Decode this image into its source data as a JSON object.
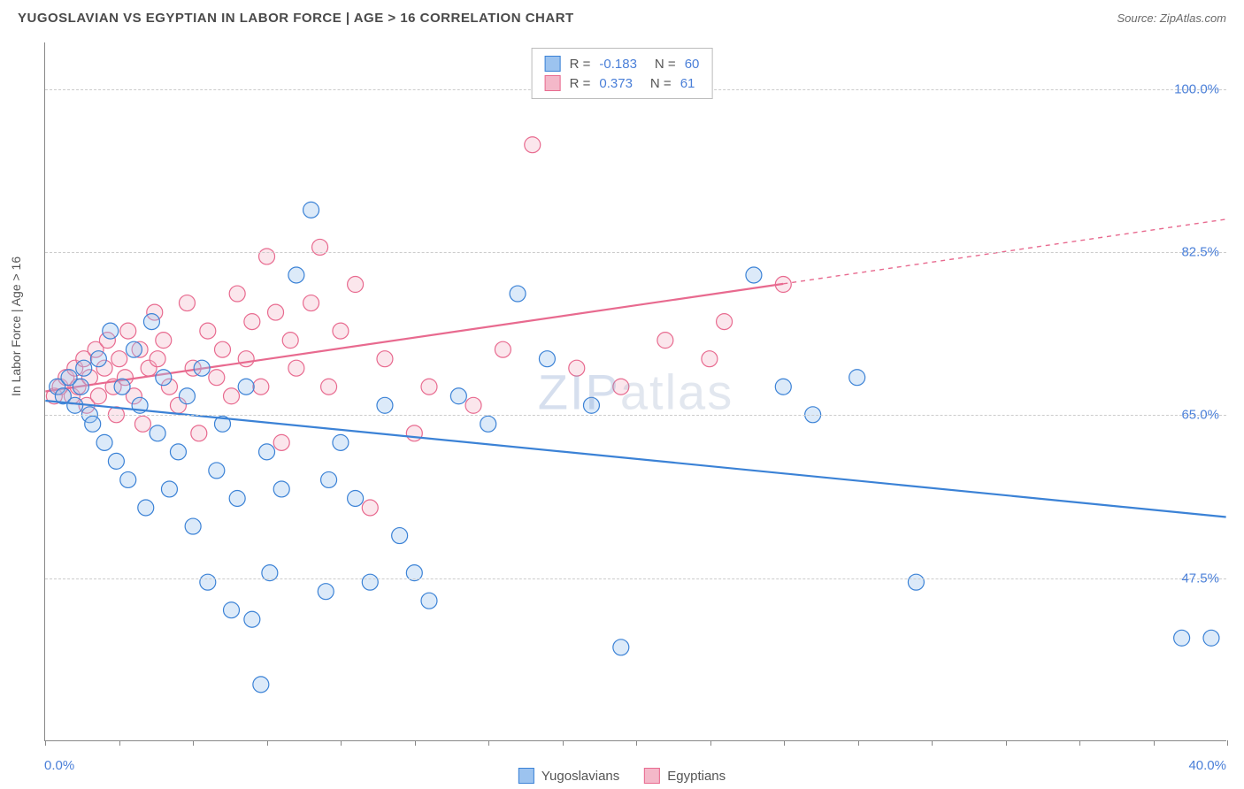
{
  "header": {
    "title": "YUGOSLAVIAN VS EGYPTIAN IN LABOR FORCE | AGE > 16 CORRELATION CHART",
    "source": "Source: ZipAtlas.com"
  },
  "chart": {
    "type": "scatter",
    "y_axis_title": "In Labor Force | Age > 16",
    "x_range": [
      0,
      40
    ],
    "y_range": [
      30,
      105
    ],
    "x_label_min": "0.0%",
    "x_label_max": "40.0%",
    "y_ticks": [
      {
        "v": 47.5,
        "label": "47.5%"
      },
      {
        "v": 65.0,
        "label": "65.0%"
      },
      {
        "v": 82.5,
        "label": "82.5%"
      },
      {
        "v": 100.0,
        "label": "100.0%"
      }
    ],
    "x_tick_step": 2.5,
    "background_color": "#ffffff",
    "grid_color": "#cccccc",
    "axis_color": "#888888",
    "marker_radius": 9,
    "marker_stroke_width": 1.2,
    "marker_fill_opacity": 0.35,
    "trend_line_width": 2.2,
    "trend_dash_width": 1.4,
    "series": {
      "yugoslavians": {
        "label": "Yugoslavians",
        "color_stroke": "#3b82d6",
        "color_fill": "#9cc3ef",
        "R": "-0.183",
        "N": "60",
        "trend": {
          "x1": 0,
          "y1": 66.5,
          "x2": 40,
          "y2": 54.0,
          "solid_until_x": 40
        },
        "points": [
          [
            0.4,
            68
          ],
          [
            0.6,
            67
          ],
          [
            0.8,
            69
          ],
          [
            1.0,
            66
          ],
          [
            1.2,
            68
          ],
          [
            1.3,
            70
          ],
          [
            1.5,
            65
          ],
          [
            1.6,
            64
          ],
          [
            1.8,
            71
          ],
          [
            2.0,
            62
          ],
          [
            2.2,
            74
          ],
          [
            2.4,
            60
          ],
          [
            2.6,
            68
          ],
          [
            2.8,
            58
          ],
          [
            3.0,
            72
          ],
          [
            3.2,
            66
          ],
          [
            3.4,
            55
          ],
          [
            3.6,
            75
          ],
          [
            3.8,
            63
          ],
          [
            4.0,
            69
          ],
          [
            4.2,
            57
          ],
          [
            4.5,
            61
          ],
          [
            4.8,
            67
          ],
          [
            5.0,
            53
          ],
          [
            5.3,
            70
          ],
          [
            5.5,
            47
          ],
          [
            5.8,
            59
          ],
          [
            6.0,
            64
          ],
          [
            6.3,
            44
          ],
          [
            6.5,
            56
          ],
          [
            6.8,
            68
          ],
          [
            7.0,
            43
          ],
          [
            7.3,
            36
          ],
          [
            7.5,
            61
          ],
          [
            7.6,
            48
          ],
          [
            8.0,
            57
          ],
          [
            8.5,
            80
          ],
          [
            9.0,
            87
          ],
          [
            9.5,
            46
          ],
          [
            9.6,
            58
          ],
          [
            10.0,
            62
          ],
          [
            10.5,
            56
          ],
          [
            11.0,
            47
          ],
          [
            11.5,
            66
          ],
          [
            12.0,
            52
          ],
          [
            12.5,
            48
          ],
          [
            13.0,
            45
          ],
          [
            14.0,
            67
          ],
          [
            15.0,
            64
          ],
          [
            16.0,
            78
          ],
          [
            17.0,
            71
          ],
          [
            18.5,
            66
          ],
          [
            19.5,
            40
          ],
          [
            24.0,
            80
          ],
          [
            25.0,
            68
          ],
          [
            26.0,
            65
          ],
          [
            27.5,
            69
          ],
          [
            29.5,
            47
          ],
          [
            38.5,
            41
          ],
          [
            39.5,
            41
          ]
        ]
      },
      "egyptians": {
        "label": "Egyptians",
        "color_stroke": "#e86a8f",
        "color_fill": "#f4b8c9",
        "R": "0.373",
        "N": "61",
        "trend": {
          "x1": 0,
          "y1": 67.5,
          "x2": 40,
          "y2": 86.0,
          "solid_until_x": 25
        },
        "points": [
          [
            0.3,
            67
          ],
          [
            0.5,
            68
          ],
          [
            0.7,
            69
          ],
          [
            0.9,
            67
          ],
          [
            1.0,
            70
          ],
          [
            1.1,
            68
          ],
          [
            1.3,
            71
          ],
          [
            1.4,
            66
          ],
          [
            1.5,
            69
          ],
          [
            1.7,
            72
          ],
          [
            1.8,
            67
          ],
          [
            2.0,
            70
          ],
          [
            2.1,
            73
          ],
          [
            2.3,
            68
          ],
          [
            2.4,
            65
          ],
          [
            2.5,
            71
          ],
          [
            2.7,
            69
          ],
          [
            2.8,
            74
          ],
          [
            3.0,
            67
          ],
          [
            3.2,
            72
          ],
          [
            3.3,
            64
          ],
          [
            3.5,
            70
          ],
          [
            3.7,
            76
          ],
          [
            3.8,
            71
          ],
          [
            4.0,
            73
          ],
          [
            4.2,
            68
          ],
          [
            4.5,
            66
          ],
          [
            4.8,
            77
          ],
          [
            5.0,
            70
          ],
          [
            5.2,
            63
          ],
          [
            5.5,
            74
          ],
          [
            5.8,
            69
          ],
          [
            6.0,
            72
          ],
          [
            6.3,
            67
          ],
          [
            6.5,
            78
          ],
          [
            6.8,
            71
          ],
          [
            7.0,
            75
          ],
          [
            7.3,
            68
          ],
          [
            7.5,
            82
          ],
          [
            7.8,
            76
          ],
          [
            8.0,
            62
          ],
          [
            8.3,
            73
          ],
          [
            8.5,
            70
          ],
          [
            9.0,
            77
          ],
          [
            9.3,
            83
          ],
          [
            9.6,
            68
          ],
          [
            10.0,
            74
          ],
          [
            10.5,
            79
          ],
          [
            11.0,
            55
          ],
          [
            11.5,
            71
          ],
          [
            12.5,
            63
          ],
          [
            13.0,
            68
          ],
          [
            14.5,
            66
          ],
          [
            15.5,
            72
          ],
          [
            16.5,
            94
          ],
          [
            18.0,
            70
          ],
          [
            19.5,
            68
          ],
          [
            21.0,
            73
          ],
          [
            22.5,
            71
          ],
          [
            23.0,
            75
          ],
          [
            25.0,
            79
          ]
        ]
      }
    },
    "watermark": {
      "bold": "ZIP",
      "thin": "atlas"
    }
  }
}
